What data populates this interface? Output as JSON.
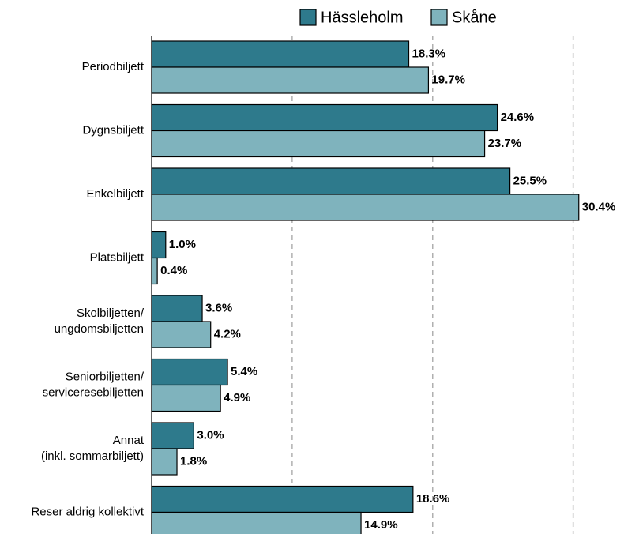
{
  "chart_data": {
    "type": "bar",
    "orientation": "horizontal",
    "categories": [
      "Periodbiljett",
      "Dygnsbiljett",
      "Enkelbiljett",
      "Platsbiljett",
      "Skolbiljetten/\nungdomsbiljetten",
      "Seniorbiljetten/\nserviceresebiljetten",
      "Annat\n(inkl. sommarbiljett)",
      "Reser aldrig kollektivt"
    ],
    "series": [
      {
        "name": "Hässleholm",
        "color": "#2e7a8c",
        "values": [
          18.3,
          24.6,
          25.5,
          1.0,
          3.6,
          5.4,
          3.0,
          18.6
        ],
        "value_labels": [
          "18.3%",
          "24.6%",
          "25.5%",
          "1.0%",
          "3.6%",
          "5.4%",
          "3.0%",
          "18.6%"
        ]
      },
      {
        "name": "Skåne",
        "color": "#7fb3bd",
        "values": [
          19.7,
          23.7,
          30.4,
          0.4,
          4.2,
          4.9,
          1.8,
          14.9
        ],
        "value_labels": [
          "19.7%",
          "23.7%",
          "30.4%",
          "0.4%",
          "4.2%",
          "4.9%",
          "1.8%",
          "14.9%"
        ]
      }
    ],
    "xlim": [
      0,
      33
    ],
    "xticks": [
      10,
      20,
      30
    ],
    "grid": true,
    "legend": "top"
  }
}
